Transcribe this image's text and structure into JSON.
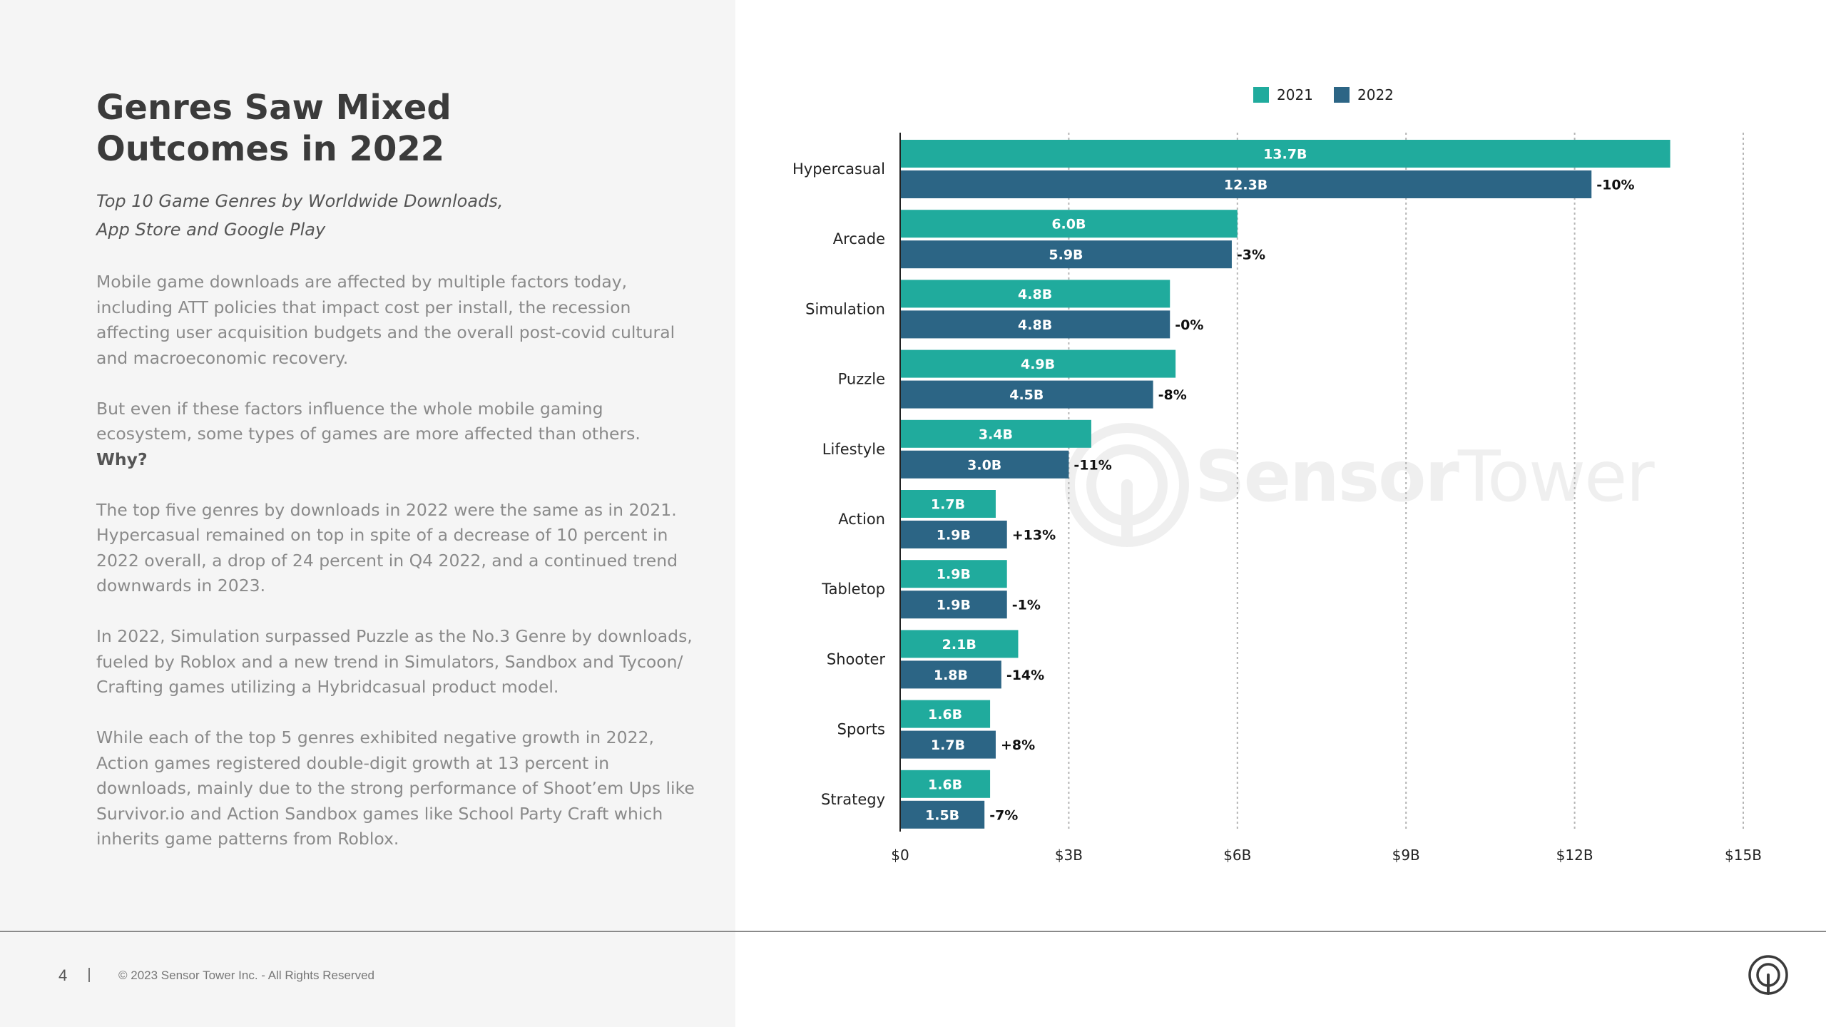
{
  "page": {
    "title_lines": [
      "Genres Saw Mixed",
      "Outcomes in 2022"
    ],
    "subtitle_lines": [
      "Top 10 Game Genres by Worldwide Downloads,",
      "App Store and Google Play"
    ],
    "paragraphs": [
      "Mobile game downloads are affected by multiple factors today, including ATT policies that impact cost per install, the recession affecting user acquisition budgets and the overall post-covid cultural and macroeconomic recovery.",
      "But even if these factors influence the whole mobile gaming ecosystem, some types of games are more affected than others.",
      "The top five genres by downloads in 2022 were the same as in 2021. Hypercasual remained on top in spite of a decrease of 10 percent in 2022 overall, a drop of 24 percent in Q4 2022, and a continued trend downwards in 2023.",
      "In 2022, Simulation surpassed Puzzle as the No.3 Genre by downloads, fueled by Roblox and a new trend in Simulators, Sandbox and Tycoon/ Crafting games utilizing a Hybridcasual product model.",
      "While each of the top 5 genres exhibited negative growth in 2022, Action games registered double-digit growth at 13 percent in downloads, mainly due to the strong performance of Shoot’em Ups like Survivor.io and Action Sandbox games like School Party Craft which inherits game patterns from Roblox."
    ],
    "why_label": "Why?"
  },
  "footer": {
    "page_number": "4",
    "separator": "|",
    "copyright": "© 2023 Sensor Tower Inc. - All Rights Reserved"
  },
  "watermark": {
    "word1": "Sensor",
    "word2": "Tower"
  },
  "icons": {
    "footer_logo": "sensor-tower-logo-icon",
    "watermark_logo": "sensor-tower-watermark-icon"
  },
  "colors": {
    "series_2021": "#20ab9d",
    "series_2022": "#2c6585",
    "axis": "#222222",
    "grid": "#b4b4b4",
    "text_dark": "#3b3b3b",
    "text_body": "#8a8a8a"
  },
  "chart_data": {
    "type": "bar",
    "orientation": "horizontal",
    "categories": [
      "Hypercasual",
      "Arcade",
      "Simulation",
      "Puzzle",
      "Lifestyle",
      "Action",
      "Tabletop",
      "Shooter",
      "Sports",
      "Strategy"
    ],
    "series": [
      {
        "name": "2021",
        "values": [
          13.7,
          6.0,
          4.8,
          4.9,
          3.4,
          1.7,
          1.9,
          2.1,
          1.6,
          1.6
        ],
        "labels": [
          "13.7B",
          "6.0B",
          "4.8B",
          "4.9B",
          "3.4B",
          "1.7B",
          "1.9B",
          "2.1B",
          "1.6B",
          "1.6B"
        ]
      },
      {
        "name": "2022",
        "values": [
          12.3,
          5.9,
          4.8,
          4.5,
          3.0,
          1.9,
          1.9,
          1.8,
          1.7,
          1.5
        ],
        "labels": [
          "12.3B",
          "5.9B",
          "4.8B",
          "4.5B",
          "3.0B",
          "1.9B",
          "1.9B",
          "1.8B",
          "1.7B",
          "1.5B"
        ]
      }
    ],
    "change_labels": [
      "-10%",
      "-3%",
      "-0%",
      "-8%",
      "-11%",
      "+13%",
      "-1%",
      "-14%",
      "+8%",
      "-7%"
    ],
    "unit": "B",
    "xlim": [
      0,
      15
    ],
    "xticks": [
      0,
      3,
      6,
      9,
      12,
      15
    ],
    "xtick_labels": [
      "$0",
      "$3B",
      "$6B",
      "$9B",
      "$12B",
      "$15B"
    ],
    "legend": [
      "2021",
      "2022"
    ],
    "legend_position": "top",
    "grid": "vertical dotted",
    "title": "Top 10 Game Genres by Worldwide Downloads, App Store and Google Play"
  }
}
